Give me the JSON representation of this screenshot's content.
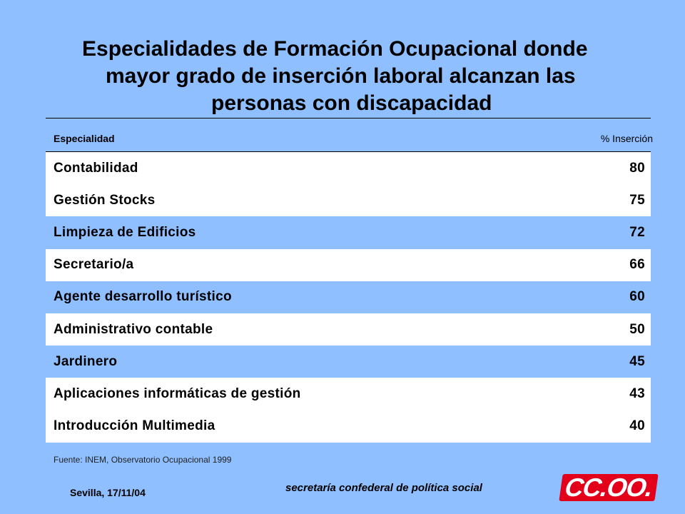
{
  "title": {
    "line1": "Especialidades de Formación Ocupacional donde",
    "line2": "mayor grado de inserción laboral alcanzan las",
    "line3": "personas con discapacidad"
  },
  "table": {
    "headers": {
      "specialty": "Especialidad",
      "percent": "% Inserción"
    },
    "rows": [
      {
        "name": "Contabilidad",
        "value": "80"
      },
      {
        "name": "Gestión Stocks",
        "value": "75"
      },
      {
        "name": "Limpieza de Edificios",
        "value": "72"
      },
      {
        "name": "Secretario/a",
        "value": "66"
      },
      {
        "name": "Agente desarrollo turístico",
        "value": "60"
      },
      {
        "name": "Administrativo contable",
        "value": "50"
      },
      {
        "name": "Jardinero",
        "value": "45"
      },
      {
        "name": "Aplicaciones informáticas de gestión",
        "value": "43"
      },
      {
        "name": "Introducción Multimedia",
        "value": "40"
      }
    ]
  },
  "source": "Fuente: INEM, Observatorio Ocupacional 1999",
  "footer": {
    "place_date": "Sevilla, 17/11/04",
    "department": "secretaría confederal de política social",
    "logo_text": "CC.OO."
  },
  "colors": {
    "background": "#8fbfff",
    "row_white": "#ffffff",
    "logo_red": "#e3001b"
  }
}
